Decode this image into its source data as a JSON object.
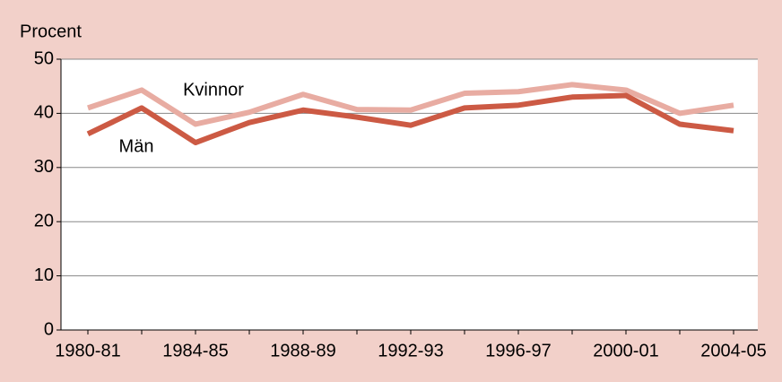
{
  "chart_data": {
    "type": "line",
    "y_axis_label": "Procent",
    "categories": [
      "1980-81",
      null,
      "1984-85",
      null,
      "1988-89",
      null,
      "1992-93",
      null,
      "1996-97",
      null,
      "2000-01",
      null,
      "2004-05"
    ],
    "series": [
      {
        "name": "Kvinnor",
        "color": "#e8aca2",
        "values": [
          41,
          44.3,
          38,
          40.2,
          43.5,
          40.7,
          40.6,
          43.7,
          44,
          45.3,
          44.3,
          40,
          41.5
        ]
      },
      {
        "name": "Män",
        "color": "#cc5a44",
        "values": [
          36.2,
          41,
          34.6,
          38.3,
          40.6,
          39.3,
          37.8,
          41,
          41.5,
          43,
          43.3,
          38,
          36.8
        ]
      }
    ],
    "ylim": [
      0,
      50
    ],
    "yticks": [
      0,
      10,
      20,
      30,
      40,
      50
    ],
    "grid": true
  }
}
